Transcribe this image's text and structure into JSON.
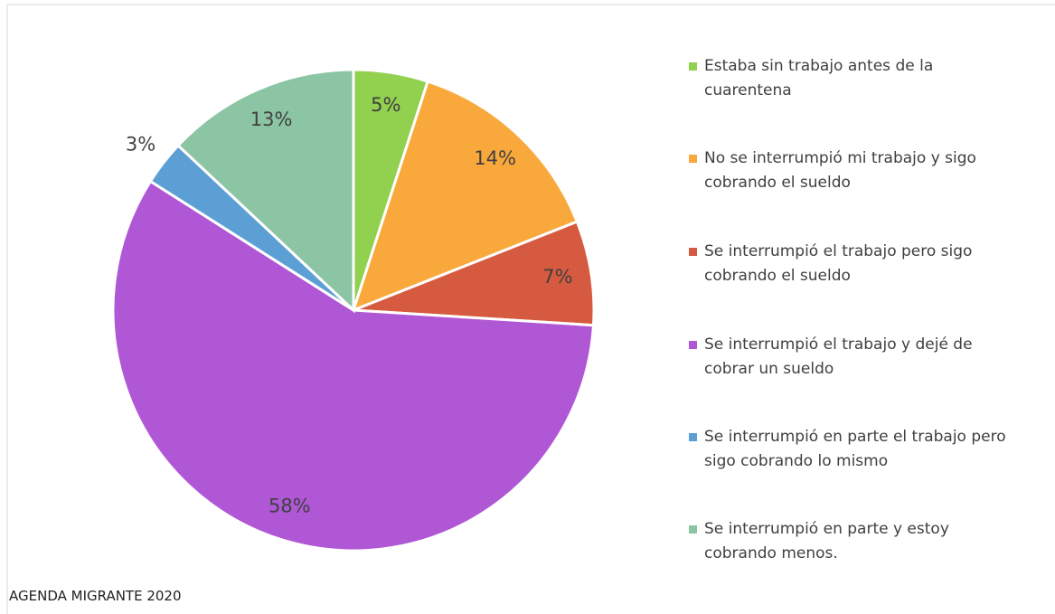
{
  "chart_data": {
    "type": "pie",
    "categories": [
      "Estaba sin trabajo antes de la cuarentena",
      "No se interrumpió mi trabajo y sigo cobrando el sueldo",
      "Se interrumpió el trabajo pero sigo cobrando el sueldo",
      "Se interrumpió el trabajo y dejé de cobrar un sueldo",
      "Se interrumpió en parte el trabajo pero sigo cobrando lo mismo",
      "Se interrumpió en parte y estoy cobrando menos."
    ],
    "values": [
      5,
      14,
      7,
      58,
      3,
      13
    ],
    "value_labels": [
      "5%",
      "14%",
      "7%",
      "58%",
      "3%",
      "13%"
    ],
    "colors": [
      "#92d050",
      "#f9a83c",
      "#d65a3f",
      "#b057d6",
      "#5b9fd5",
      "#8cc5a3"
    ],
    "legend": "right",
    "source": "AGENDA MIGRANTE 2020"
  }
}
